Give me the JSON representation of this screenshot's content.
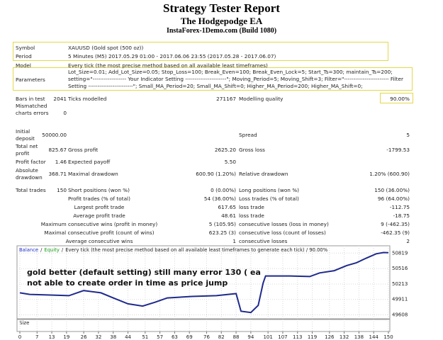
{
  "header": {
    "title": "Strategy Tester Report",
    "subtitle": "The Hodgepodge EA",
    "server": "InstaForex-1Demo.com (Build 1080)"
  },
  "report": {
    "rows": [
      {
        "cells": [
          "Symbol",
          "XAUUSD (Gold spot (500 oz))"
        ]
      },
      {
        "cells": [
          "Period",
          "5 Minutes (M5) 2017.05.29 01:00 - 2017.06.06 23:55 (2017.05.28 - 2017.06.07)"
        ]
      },
      {
        "cells": [
          "Model",
          "Every tick (the most precise method based on all available least timeframes)"
        ]
      },
      {
        "cells": [
          "Parameters",
          "Lot_Size=0.01; Add_Lot_Size=0.05; Stop_Loss=100; Break_Even=100; Break_Even_Lock=5; Start_Ts=300; maintain_Ts=200; setting=\"------------------ Your Indicator Setting ----------------------\"; Moving_Period=5; Moving_Shift=3; Filter=\"------------------------ Filter Setting ------------------------\"; Small_MA_Period=20; Small_MA_Shift=0; Higher_MA_Period=200; Higher_MA_Shift=0;"
        ]
      },
      {
        "cells": [
          "Bars in test",
          "2041",
          "Ticks modelled",
          "271167",
          "Modelling quality",
          "90.00%"
        ]
      },
      {
        "cells": [
          "Mismatched charts errors",
          "0"
        ]
      },
      {
        "cells": [
          "Initial deposit",
          "50000.00",
          "Spread",
          "5"
        ]
      },
      {
        "cells": [
          "Total net profit",
          "825.67",
          "Gross profit",
          "2625.20",
          "Gross loss",
          "-1799.53"
        ]
      },
      {
        "cells": [
          "Profit factor",
          "1.46",
          "Expected payoff",
          "5.50"
        ]
      },
      {
        "cells": [
          "Absolute drawdown",
          "368.71",
          "Maximal drawdown",
          "600.90 (1.20%)",
          "Relative drawdown",
          "1.20% (600.90)"
        ]
      },
      {
        "cells": [
          "Total trades",
          "150",
          "Short positions (won %)",
          "0 (0.00%)",
          "Long positions (won %)",
          "150 (36.00%)"
        ]
      },
      {
        "cells": [
          "Profit trades (% of total)",
          "54 (36.00%)",
          "Loss trades (% of total)",
          "96 (64.00%)"
        ]
      },
      {
        "cells": [
          "Largest profit trade",
          "617.65",
          "loss trade",
          "-112.75"
        ]
      },
      {
        "cells": [
          "Average profit trade",
          "48.61",
          "loss trade",
          "-18.75"
        ]
      },
      {
        "cells": [
          "Maximum consecutive wins (profit in money)",
          "5 (105.95)",
          "consecutive losses (loss in money)",
          "9 (-462.35)"
        ]
      },
      {
        "cells": [
          "Maximal consecutive profit (count of wins)",
          "623.25 (3)",
          "consecutive loss (count of losses)",
          "-462.35 (9)"
        ]
      },
      {
        "cells": [
          "Average consecutive wins",
          "1",
          "consecutive losses",
          "2"
        ]
      }
    ]
  },
  "chart_data": {
    "type": "line",
    "title": "Every tick (the most precise method based on all available least timeframes to generate each tick) / 90.00%",
    "separator": "/",
    "equity_label": "Equity",
    "equity_color": "#1a9a1a",
    "annotation": "gold better (default setting) still many error 130 ( ea not able to create order in time as price jump",
    "size_label": "Size",
    "x": [
      0,
      4,
      10,
      20,
      26,
      33,
      38,
      44,
      50,
      55,
      60,
      70,
      80,
      88,
      90,
      94,
      97,
      99,
      100,
      110,
      118,
      122,
      128,
      133,
      137,
      141,
      145,
      148,
      150
    ],
    "series": [
      {
        "name": "Balance",
        "color": "#1f2a8c",
        "values": [
          50040,
          50010,
          50000,
          49985,
          50085,
          50040,
          49940,
          49825,
          49780,
          49855,
          49940,
          49970,
          49985,
          50025,
          49680,
          49655,
          49795,
          50230,
          50370,
          50370,
          50360,
          50430,
          50475,
          50575,
          50630,
          50720,
          50805,
          50830,
          50825.67
        ]
      }
    ],
    "xlim": [
      0,
      150
    ],
    "xticks": [
      0,
      7,
      13,
      19,
      26,
      32,
      38,
      44,
      51,
      57,
      63,
      69,
      76,
      82,
      88,
      94,
      101,
      107,
      113,
      119,
      126,
      132,
      138,
      144,
      150
    ],
    "ylim": [
      49560,
      50920
    ],
    "yticks": [
      49608,
      49911,
      50213,
      50516,
      50819
    ],
    "grid": true
  }
}
